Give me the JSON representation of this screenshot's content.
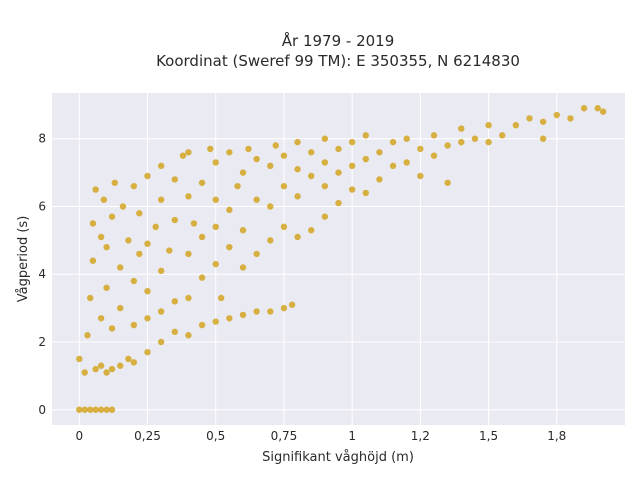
{
  "chart_data": {
    "type": "scatter",
    "title_lines": [
      "År 1979 - 2019",
      "Koordinat (Sweref 99 TM): E 350355, N 6214830"
    ],
    "xlabel": "Signifikant våghöjd (m)",
    "ylabel": "Vågperiod (s)",
    "xlim": [
      -0.1,
      2.0
    ],
    "ylim": [
      -0.45,
      9.35
    ],
    "x_ticks": [
      0,
      0.25,
      0.5,
      0.75,
      1,
      1.25,
      1.5,
      1.75
    ],
    "x_tick_labels": [
      "0",
      "0,25",
      "0,5",
      "0,75",
      "1",
      "1,2",
      "1,5",
      "1,8"
    ],
    "y_ticks": [
      0,
      2,
      4,
      6,
      8
    ],
    "y_tick_labels": [
      "0",
      "2",
      "4",
      "6",
      "8"
    ],
    "grid": true,
    "colors": {
      "marker": "#D4A421",
      "plot_background": "#EAEAF2",
      "grid": "#FFFFFF",
      "text": "#2A2A2A"
    },
    "series": [
      {
        "points": [
          [
            0.0,
            0.0
          ],
          [
            0.02,
            0.0
          ],
          [
            0.04,
            0.0
          ],
          [
            0.06,
            0.0
          ],
          [
            0.08,
            0.0
          ],
          [
            0.1,
            0.0
          ],
          [
            0.12,
            0.0
          ],
          [
            0.0,
            1.5
          ],
          [
            0.02,
            1.1
          ],
          [
            0.03,
            2.2
          ],
          [
            0.04,
            3.3
          ],
          [
            0.05,
            4.4
          ],
          [
            0.05,
            5.5
          ],
          [
            0.06,
            1.2
          ],
          [
            0.06,
            6.5
          ],
          [
            0.08,
            1.3
          ],
          [
            0.08,
            2.7
          ],
          [
            0.08,
            5.1
          ],
          [
            0.09,
            6.2
          ],
          [
            0.1,
            1.1
          ],
          [
            0.1,
            3.6
          ],
          [
            0.1,
            4.8
          ],
          [
            0.12,
            1.2
          ],
          [
            0.12,
            2.4
          ],
          [
            0.12,
            5.7
          ],
          [
            0.13,
            6.7
          ],
          [
            0.15,
            1.3
          ],
          [
            0.15,
            3.0
          ],
          [
            0.15,
            4.2
          ],
          [
            0.16,
            6.0
          ],
          [
            0.18,
            1.5
          ],
          [
            0.18,
            5.0
          ],
          [
            0.2,
            1.4
          ],
          [
            0.2,
            2.5
          ],
          [
            0.2,
            3.8
          ],
          [
            0.2,
            6.6
          ],
          [
            0.22,
            4.6
          ],
          [
            0.22,
            5.8
          ],
          [
            0.25,
            1.7
          ],
          [
            0.25,
            2.7
          ],
          [
            0.25,
            3.5
          ],
          [
            0.25,
            4.9
          ],
          [
            0.25,
            6.9
          ],
          [
            0.28,
            5.4
          ],
          [
            0.3,
            2.0
          ],
          [
            0.3,
            2.9
          ],
          [
            0.3,
            4.1
          ],
          [
            0.3,
            6.2
          ],
          [
            0.3,
            7.2
          ],
          [
            0.33,
            4.7
          ],
          [
            0.35,
            2.3
          ],
          [
            0.35,
            3.2
          ],
          [
            0.35,
            5.6
          ],
          [
            0.35,
            6.8
          ],
          [
            0.38,
            7.5
          ],
          [
            0.4,
            2.2
          ],
          [
            0.4,
            3.3
          ],
          [
            0.4,
            4.6
          ],
          [
            0.4,
            6.3
          ],
          [
            0.4,
            7.6
          ],
          [
            0.42,
            5.5
          ],
          [
            0.45,
            2.5
          ],
          [
            0.45,
            3.9
          ],
          [
            0.45,
            5.1
          ],
          [
            0.45,
            6.7
          ],
          [
            0.48,
            7.7
          ],
          [
            0.5,
            2.6
          ],
          [
            0.5,
            4.3
          ],
          [
            0.5,
            5.4
          ],
          [
            0.5,
            6.2
          ],
          [
            0.5,
            7.3
          ],
          [
            0.52,
            3.3
          ],
          [
            0.55,
            2.7
          ],
          [
            0.55,
            4.8
          ],
          [
            0.55,
            5.9
          ],
          [
            0.55,
            7.6
          ],
          [
            0.58,
            6.6
          ],
          [
            0.6,
            2.8
          ],
          [
            0.6,
            4.2
          ],
          [
            0.6,
            5.3
          ],
          [
            0.6,
            7.0
          ],
          [
            0.62,
            7.7
          ],
          [
            0.65,
            2.9
          ],
          [
            0.65,
            4.6
          ],
          [
            0.65,
            6.2
          ],
          [
            0.65,
            7.4
          ],
          [
            0.7,
            2.9
          ],
          [
            0.7,
            5.0
          ],
          [
            0.7,
            6.0
          ],
          [
            0.7,
            7.2
          ],
          [
            0.72,
            7.8
          ],
          [
            0.75,
            3.0
          ],
          [
            0.75,
            5.4
          ],
          [
            0.75,
            6.6
          ],
          [
            0.75,
            7.5
          ],
          [
            0.78,
            3.1
          ],
          [
            0.8,
            5.1
          ],
          [
            0.8,
            6.3
          ],
          [
            0.8,
            7.1
          ],
          [
            0.8,
            7.9
          ],
          [
            0.85,
            5.3
          ],
          [
            0.85,
            6.9
          ],
          [
            0.85,
            7.6
          ],
          [
            0.9,
            5.7
          ],
          [
            0.9,
            6.6
          ],
          [
            0.9,
            7.3
          ],
          [
            0.9,
            8.0
          ],
          [
            0.95,
            6.1
          ],
          [
            0.95,
            7.0
          ],
          [
            0.95,
            7.7
          ],
          [
            1.0,
            6.5
          ],
          [
            1.0,
            7.2
          ],
          [
            1.0,
            7.9
          ],
          [
            1.05,
            6.4
          ],
          [
            1.05,
            7.4
          ],
          [
            1.05,
            8.1
          ],
          [
            1.1,
            6.8
          ],
          [
            1.1,
            7.6
          ],
          [
            1.15,
            7.2
          ],
          [
            1.15,
            7.9
          ],
          [
            1.2,
            7.3
          ],
          [
            1.2,
            8.0
          ],
          [
            1.25,
            6.9
          ],
          [
            1.25,
            7.7
          ],
          [
            1.3,
            7.5
          ],
          [
            1.3,
            8.1
          ],
          [
            1.35,
            6.7
          ],
          [
            1.35,
            7.8
          ],
          [
            1.4,
            7.9
          ],
          [
            1.4,
            8.3
          ],
          [
            1.45,
            8.0
          ],
          [
            1.5,
            7.9
          ],
          [
            1.5,
            8.4
          ],
          [
            1.55,
            8.1
          ],
          [
            1.6,
            8.4
          ],
          [
            1.65,
            8.6
          ],
          [
            1.7,
            8.5
          ],
          [
            1.7,
            8.0
          ],
          [
            1.75,
            8.7
          ],
          [
            1.8,
            8.6
          ],
          [
            1.85,
            8.9
          ],
          [
            1.9,
            8.9
          ],
          [
            1.92,
            8.8
          ]
        ]
      }
    ]
  }
}
